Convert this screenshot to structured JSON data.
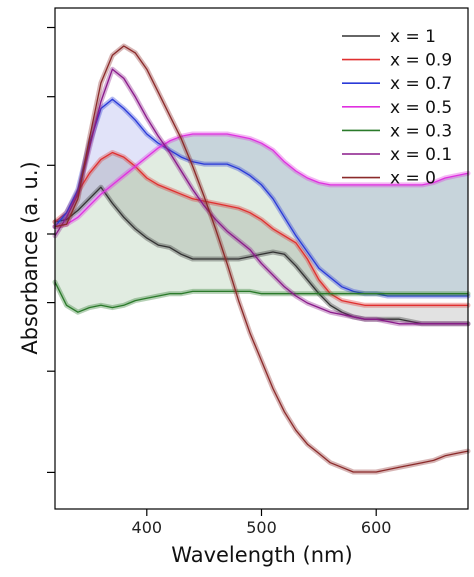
{
  "chart_data": {
    "type": "line",
    "title": "",
    "xlabel": "Wavelength (nm)",
    "ylabel": "Absorbance (a. u.)",
    "xlim": [
      320,
      680
    ],
    "ylim": [
      0,
      100
    ],
    "x_ticks": [
      "400",
      "500",
      "600"
    ],
    "x_tick_values": [
      400,
      500,
      600
    ],
    "y_ticks_labeled": false,
    "y_tick_values": [
      7.3,
      27.5,
      41.2,
      54.9,
      68.6,
      82.3,
      96.1
    ],
    "grid": false,
    "legend_position": "top-right",
    "series": [
      {
        "name": "x = 1",
        "color": "#333333",
        "x": [
          320,
          330,
          340,
          350,
          360,
          370,
          380,
          390,
          400,
          410,
          420,
          430,
          440,
          450,
          460,
          470,
          480,
          490,
          500,
          510,
          520,
          530,
          540,
          550,
          560,
          570,
          580,
          590,
          600,
          610,
          620,
          630,
          640,
          650,
          660,
          670,
          680
        ],
        "y": [
          62.0,
          62.5,
          64.5,
          67.0,
          69.5,
          66.0,
          63.0,
          60.5,
          58.5,
          57.0,
          56.5,
          55.0,
          54.0,
          54.0,
          54.0,
          54.0,
          54.0,
          54.5,
          55.0,
          55.5,
          55.0,
          52.5,
          49.5,
          46.5,
          44.0,
          42.5,
          41.5,
          41.0,
          41.0,
          41.0,
          41.0,
          40.5,
          40.0,
          40.0,
          40.0,
          40.0,
          40.0
        ],
        "shade_x": [
          320,
          330,
          340,
          350,
          360,
          370,
          380,
          390,
          400,
          410,
          420,
          430,
          440,
          450,
          460,
          470,
          480,
          490,
          500,
          510,
          520,
          530,
          540,
          550,
          560,
          570,
          580,
          590,
          600,
          610,
          620,
          630,
          640,
          650,
          660,
          670,
          680
        ],
        "shade_y": [
          62.0,
          62.5,
          64.5,
          67.0,
          69.5,
          66.0,
          63.0,
          60.5,
          58.5,
          57.0,
          56.5,
          55.0,
          54.0,
          54.0,
          54.0,
          54.0,
          54.0,
          54.5,
          55.0,
          55.5,
          55.0,
          52.5,
          49.5,
          46.5,
          44.0,
          42.5,
          41.5,
          41.0,
          41.0,
          41.0,
          41.0,
          40.5,
          40.0,
          40.0,
          40.0,
          40.0,
          40.0
        ]
      },
      {
        "name": "x = 0.9",
        "color": "#e03030",
        "x": [
          320,
          330,
          340,
          350,
          360,
          370,
          380,
          390,
          400,
          410,
          420,
          430,
          440,
          450,
          460,
          470,
          480,
          490,
          500,
          510,
          520,
          530,
          540,
          550,
          560,
          570,
          580,
          590,
          600,
          610,
          620,
          630,
          640,
          650,
          660,
          670,
          680
        ],
        "y": [
          62.0,
          64.0,
          68.5,
          72.5,
          75.5,
          77.0,
          76.0,
          74.0,
          71.5,
          70.0,
          69.0,
          68.0,
          67.0,
          66.5,
          66.0,
          65.5,
          65.0,
          64.0,
          62.5,
          60.5,
          59.0,
          57.5,
          54.0,
          49.5,
          46.5,
          45.0,
          44.5,
          44.0,
          44.0,
          44.0,
          44.0,
          44.0,
          44.0,
          44.0,
          44.0,
          44.0,
          44.0
        ]
      },
      {
        "name": "x = 0.7",
        "color": "#2a3ad8",
        "x": [
          320,
          330,
          340,
          350,
          360,
          370,
          380,
          390,
          400,
          410,
          420,
          430,
          440,
          450,
          460,
          470,
          480,
          490,
          500,
          510,
          520,
          530,
          540,
          550,
          560,
          570,
          580,
          590,
          600,
          610,
          620,
          630,
          640,
          650,
          660,
          670,
          680
        ],
        "y": [
          61.0,
          64.0,
          69.0,
          79.0,
          86.5,
          88.5,
          86.5,
          84.0,
          81.0,
          79.0,
          77.5,
          76.0,
          75.0,
          74.5,
          74.5,
          74.5,
          73.5,
          72.0,
          70.0,
          67.0,
          63.0,
          59.0,
          55.5,
          52.0,
          50.0,
          48.0,
          47.0,
          46.5,
          46.5,
          46.0,
          46.0,
          46.0,
          46.0,
          46.0,
          46.0,
          46.0,
          46.0
        ]
      },
      {
        "name": "x = 0.5",
        "color": "#e030e0",
        "x": [
          320,
          330,
          340,
          350,
          360,
          370,
          380,
          390,
          400,
          410,
          420,
          430,
          440,
          450,
          460,
          470,
          480,
          490,
          500,
          510,
          520,
          530,
          540,
          550,
          560,
          570,
          580,
          590,
          600,
          610,
          620,
          630,
          640,
          650,
          660,
          670,
          680
        ],
        "y": [
          61.0,
          61.5,
          63.0,
          65.5,
          68.0,
          70.0,
          72.0,
          74.0,
          76.0,
          78.0,
          79.5,
          80.5,
          81.0,
          81.0,
          81.0,
          81.0,
          80.5,
          80.0,
          79.0,
          77.5,
          75.0,
          73.0,
          71.5,
          70.5,
          70.0,
          70.0,
          70.0,
          70.0,
          70.0,
          70.0,
          70.0,
          70.0,
          70.0,
          70.5,
          71.5,
          72.0,
          72.5
        ]
      },
      {
        "name": "x = 0.3",
        "color": "#2a7a2a",
        "x": [
          320,
          330,
          340,
          350,
          360,
          370,
          380,
          390,
          400,
          410,
          420,
          430,
          440,
          450,
          460,
          470,
          480,
          490,
          500,
          510,
          520,
          530,
          540,
          550,
          560,
          570,
          580,
          590,
          600,
          610,
          620,
          630,
          640,
          650,
          660,
          670,
          680
        ],
        "y": [
          49.0,
          44.0,
          42.5,
          43.5,
          44.0,
          43.5,
          44.0,
          45.0,
          45.5,
          46.0,
          46.5,
          46.5,
          47.0,
          47.0,
          47.0,
          47.0,
          47.0,
          47.0,
          46.5,
          46.5,
          46.5,
          46.5,
          46.5,
          46.5,
          46.5,
          46.5,
          46.5,
          46.5,
          46.5,
          46.5,
          46.5,
          46.5,
          46.5,
          46.5,
          46.5,
          46.5,
          46.5
        ]
      },
      {
        "name": "x = 0.1",
        "color": "#8a1a8a",
        "x": [
          320,
          330,
          340,
          350,
          360,
          370,
          380,
          390,
          400,
          410,
          420,
          430,
          440,
          450,
          460,
          470,
          480,
          490,
          500,
          510,
          520,
          530,
          540,
          550,
          560,
          570,
          580,
          590,
          600,
          610,
          620,
          630,
          640,
          650,
          660,
          670,
          680
        ],
        "y": [
          59.0,
          63.0,
          68.0,
          78.0,
          88.0,
          95.0,
          93.0,
          89.0,
          84.5,
          80.5,
          77.0,
          73.0,
          69.0,
          65.5,
          62.5,
          60.0,
          58.0,
          56.0,
          53.0,
          50.5,
          48.0,
          46.0,
          44.5,
          43.5,
          42.5,
          42.0,
          41.5,
          41.0,
          41.0,
          40.5,
          40.0,
          40.0,
          40.0,
          40.0,
          40.0,
          40.0,
          40.0
        ]
      },
      {
        "name": "x = 0",
        "color": "#8b2a2a",
        "x": [
          320,
          330,
          340,
          350,
          360,
          370,
          380,
          390,
          400,
          410,
          420,
          430,
          440,
          450,
          460,
          470,
          480,
          490,
          500,
          510,
          520,
          530,
          540,
          550,
          560,
          570,
          580,
          590,
          600,
          610,
          620,
          630,
          640,
          650,
          660,
          670,
          680
        ],
        "y": [
          61.0,
          61.5,
          67.0,
          80.0,
          92.0,
          98.0,
          100.0,
          98.5,
          95.0,
          90.0,
          85.0,
          80.0,
          74.0,
          67.5,
          60.5,
          53.0,
          45.0,
          38.0,
          32.0,
          26.0,
          21.0,
          17.0,
          14.0,
          12.0,
          10.0,
          9.0,
          8.0,
          8.0,
          8.0,
          8.5,
          9.0,
          9.5,
          10.0,
          10.5,
          11.5,
          12.0,
          12.5
        ]
      }
    ]
  }
}
